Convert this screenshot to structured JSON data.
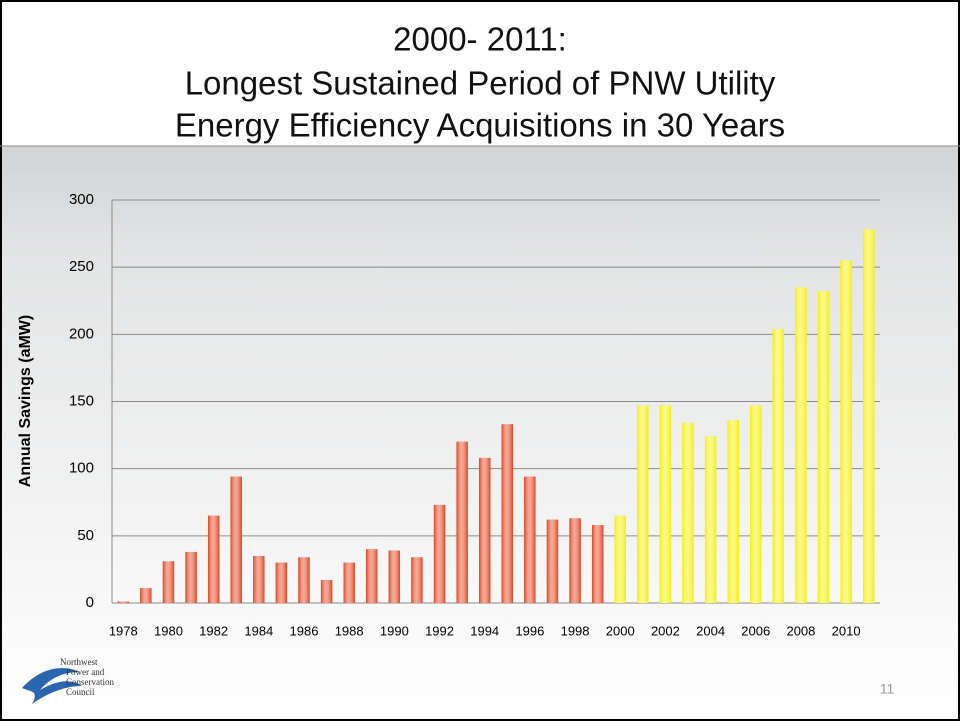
{
  "chart_data": {
    "type": "bar",
    "title_lines": [
      "2000- 2011:",
      "Longest Sustained Period of PNW Utility",
      "Energy Efficiency Acquisitions in 30 Years"
    ],
    "y_label": "Annual Savings (aMW)",
    "categories": [
      "1978",
      null,
      "1980",
      null,
      "1982",
      null,
      "1984",
      null,
      "1986",
      null,
      "1988",
      null,
      "1990",
      null,
      "1992",
      null,
      "1994",
      null,
      "1996",
      null,
      "1998",
      null,
      "2000",
      null,
      "2002",
      null,
      "2004",
      null,
      "2006",
      null,
      "2008",
      null,
      "2010",
      null
    ],
    "values": [
      1,
      11,
      31,
      38,
      65,
      94,
      35,
      30,
      34,
      17,
      30,
      40,
      39,
      34,
      73,
      120,
      108,
      133,
      94,
      62,
      63,
      58,
      65,
      147,
      147,
      134,
      124,
      136,
      147,
      204,
      235,
      232,
      255,
      278
    ],
    "colors": [
      "#e2401a",
      "#e2401a",
      "#e2401a",
      "#e2401a",
      "#e2401a",
      "#e2401a",
      "#e2401a",
      "#e2401a",
      "#e2401a",
      "#e2401a",
      "#e2401a",
      "#e2401a",
      "#e2401a",
      "#e2401a",
      "#e2401a",
      "#e2401a",
      "#e2401a",
      "#e2401a",
      "#e2401a",
      "#e2401a",
      "#e2401a",
      "#e2401a",
      "#f5f000",
      "#f5f000",
      "#f5f000",
      "#f5f000",
      "#f5f000",
      "#f5f000",
      "#f5f000",
      "#f5f000",
      "#f5f000",
      "#f5f000",
      "#f5f000",
      "#f5f000"
    ],
    "ylim": [
      0,
      300
    ],
    "yticks": [
      0,
      50,
      100,
      150,
      200,
      250,
      300
    ],
    "grid": true
  },
  "footer": {
    "logo_lines": [
      "Northwest",
      "Power and",
      "Conservation",
      "Council"
    ],
    "page_number": "11"
  }
}
